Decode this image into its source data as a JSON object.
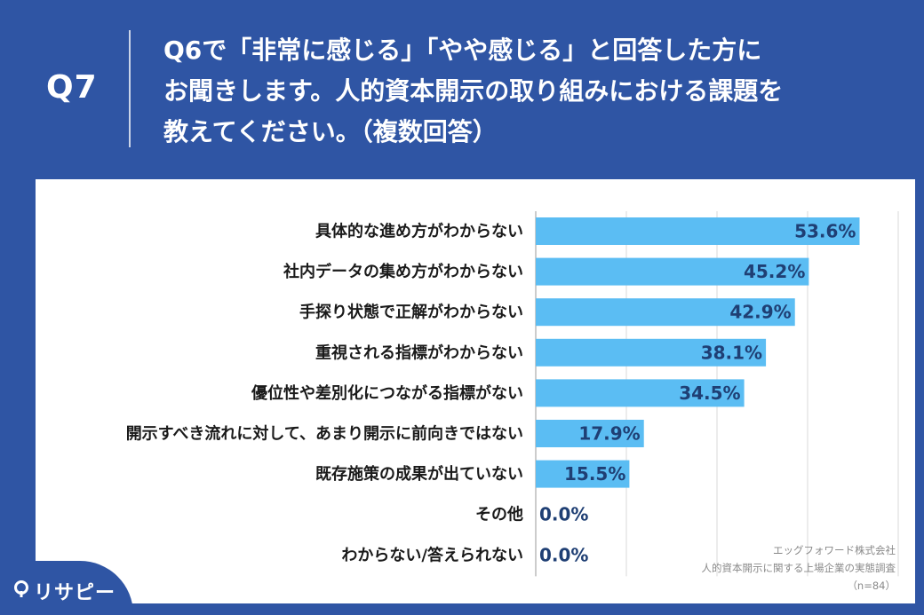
{
  "header": {
    "question_number": "Q7",
    "question_lines": [
      "Q6で「非常に感じる」「やや感じる」と回答した方に",
      "お聞きします。人的資本開示の取り組みにおける課題を",
      "教えてください。（複数回答）"
    ]
  },
  "source": {
    "company": "エッグフォワード株式会社",
    "survey": "人的資本開示に関する上場企業の実態調査",
    "sample": "（n=84）"
  },
  "logo": {
    "text": "リサピー"
  },
  "colors": {
    "background": "#2f55a4",
    "bar": "#5bbdf3",
    "value_text": "#1f3f74"
  },
  "chart_data": {
    "type": "bar",
    "orientation": "horizontal",
    "categories": [
      "具体的な進め方がわからない",
      "社内データの集め方がわからない",
      "手探り状態で正解がわからない",
      "重視される指標がわからない",
      "優位性や差別化につながる指標がない",
      "開示すべき流れに対して、あまり開示に前向きではない",
      "既存施策の成果が出ていない",
      "その他",
      "わからない/答えられない"
    ],
    "values": [
      53.6,
      45.2,
      42.9,
      38.1,
      34.5,
      17.9,
      15.5,
      0.0,
      0.0
    ],
    "value_labels": [
      "53.6%",
      "45.2%",
      "42.9%",
      "38.1%",
      "34.5%",
      "17.9%",
      "15.5%",
      "0.0%",
      "0.0%"
    ],
    "xlim": [
      0,
      60
    ],
    "grid": true
  }
}
